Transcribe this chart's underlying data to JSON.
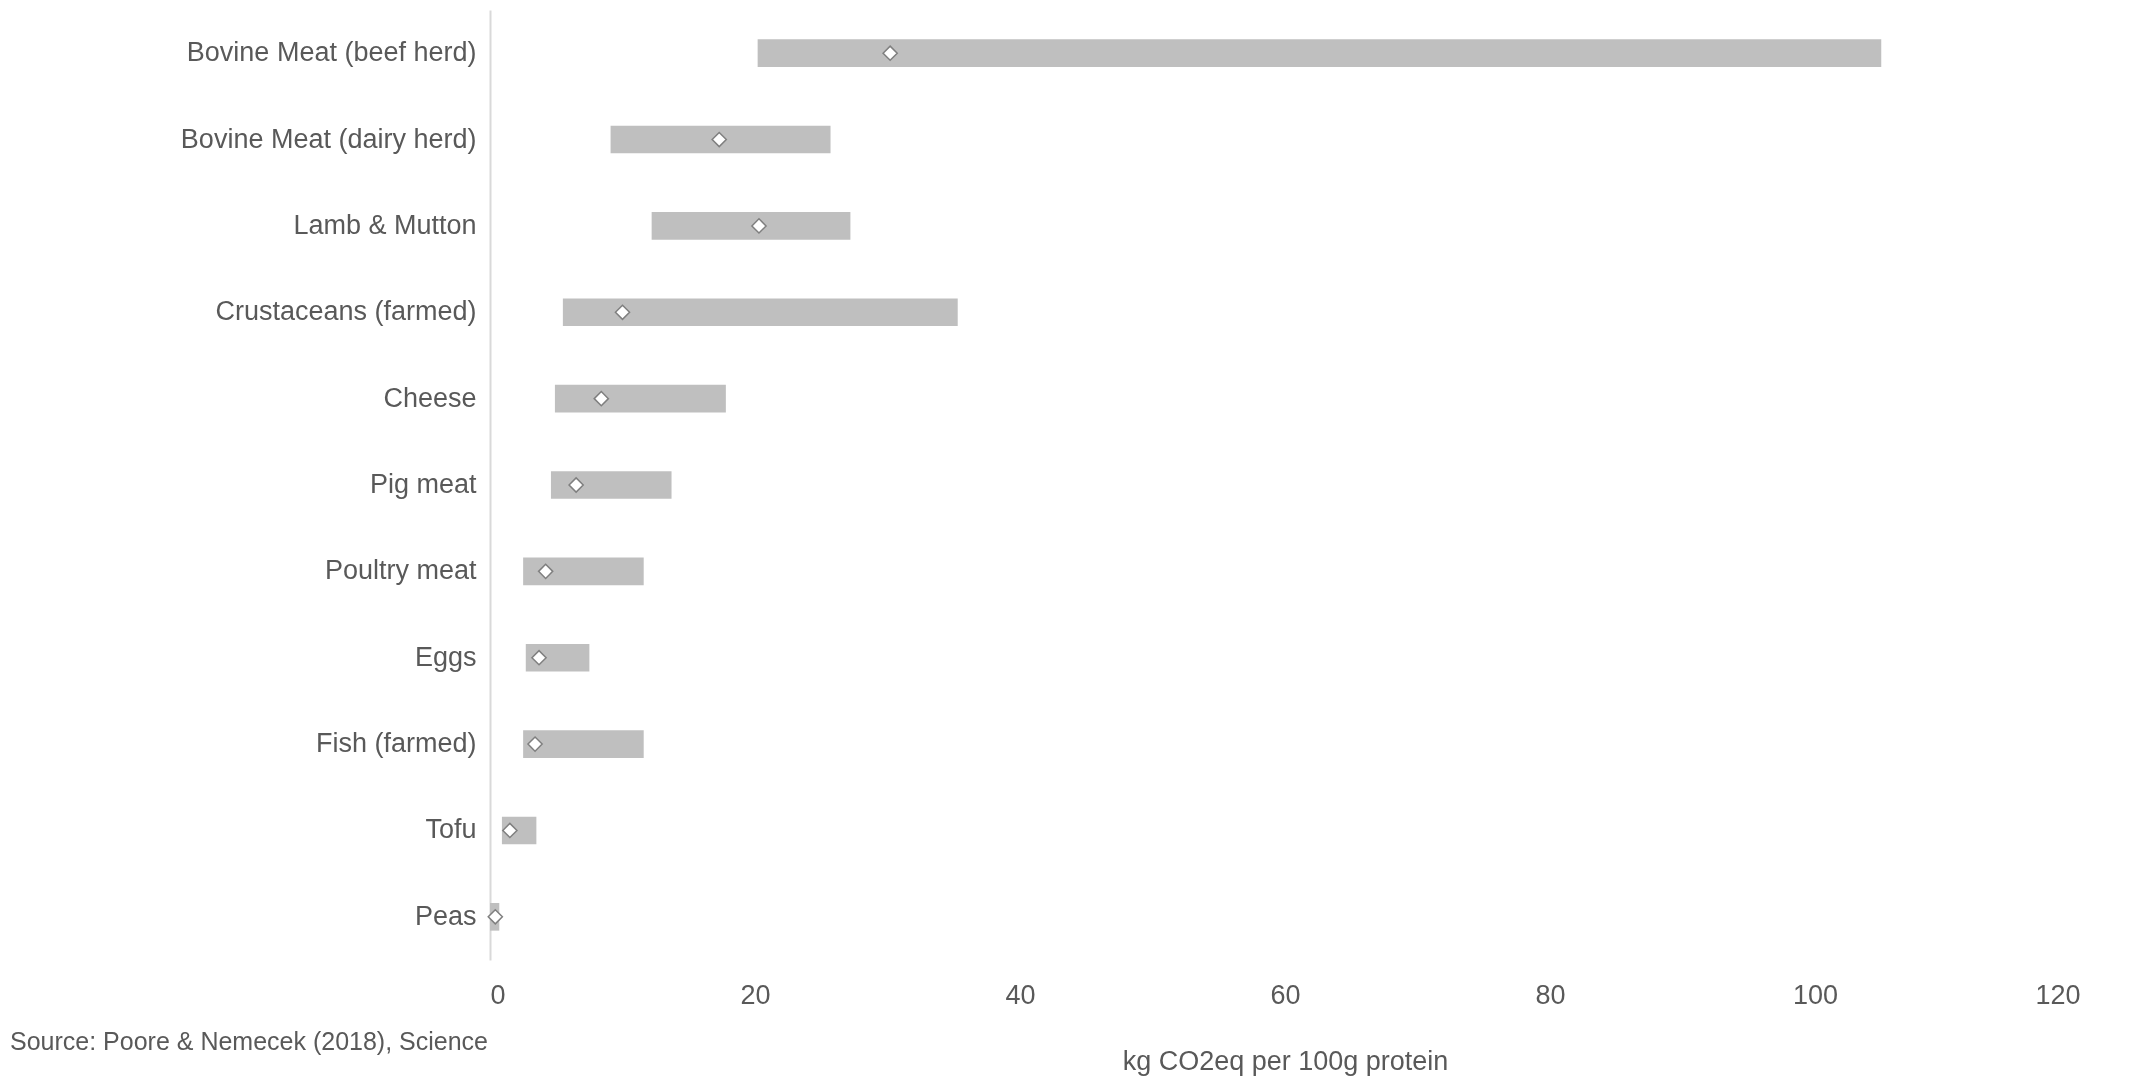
{
  "chart_data": {
    "type": "bar",
    "orientation": "horizontal",
    "xlabel": "kg CO2eq per 100g protein",
    "categories": [
      "Bovine Meat (beef herd)",
      "Bovine Meat (dairy herd)",
      "Lamb & Mutton",
      "Crustaceans (farmed)",
      "Cheese",
      "Pig meat",
      "Poultry meat",
      "Eggs",
      "Fish (farmed)",
      "Tofu",
      "Peas"
    ],
    "series": [
      {
        "color": "#bfbfbf",
        "base": [
          20.2,
          9.1,
          12.2,
          5.5,
          4.9,
          4.6,
          2.5,
          2.7,
          2.5,
          0.9,
          0
        ],
        "values": [
          84.8,
          16.6,
          15.0,
          29.8,
          12.9,
          9.1,
          9.1,
          4.8,
          9.1,
          2.6,
          0.7
        ]
      },
      {
        "type": "scatter",
        "marker": "diamond",
        "color": "#ffffff",
        "values": [
          30.2,
          17.3,
          20.3,
          10.0,
          8.4,
          6.5,
          4.2,
          3.7,
          3.4,
          1.5,
          0.4
        ]
      }
    ],
    "xlim": [
      0,
      120
    ],
    "xticks": [
      0,
      20,
      40,
      60,
      80,
      100,
      120
    ],
    "annotations": [
      "Source: Poore & Nemecek (2018), Science"
    ]
  }
}
